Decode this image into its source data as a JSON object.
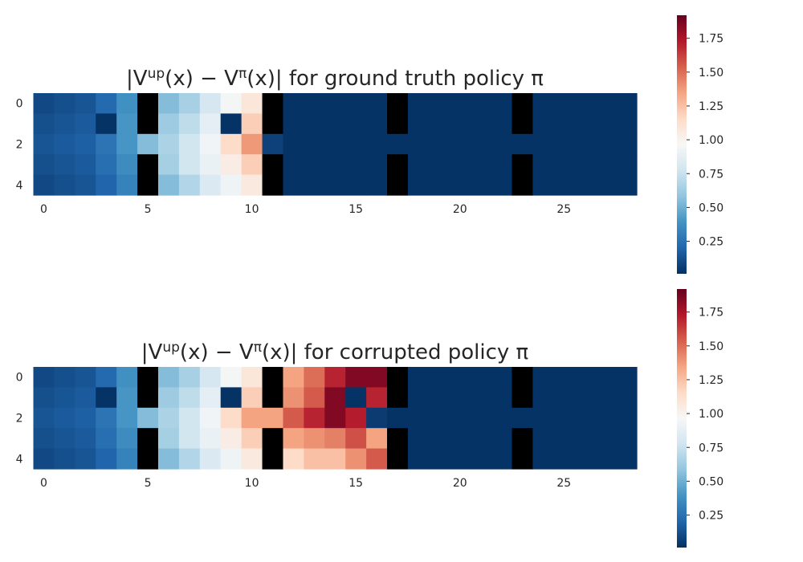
{
  "chart_data": [
    {
      "type": "heatmap",
      "title": "|V^{up}(x) − V^{π}(x)| for ground truth policy π",
      "title_parts": {
        "pre": "|V",
        "sup1": "up",
        "mid": "(x) − V",
        "sup2": "π",
        "post": "(x)| for ground truth policy π"
      },
      "xlabel": "",
      "ylabel": "",
      "xlim": [
        0,
        29
      ],
      "ylim": [
        0,
        5
      ],
      "x_ticks": [
        0,
        5,
        10,
        15,
        20,
        25
      ],
      "y_ticks": [
        0,
        2,
        4
      ],
      "colormap": "RdBu_r",
      "color_range": [
        0.01,
        1.92
      ],
      "colorbar_ticks": [
        0.25,
        0.5,
        0.75,
        1.0,
        1.25,
        1.5,
        1.75
      ],
      "wall_color": "#000000",
      "values": [
        [
          0.1,
          0.12,
          0.14,
          0.22,
          0.38,
          null,
          0.55,
          0.65,
          0.8,
          0.95,
          1.08,
          null,
          0.02,
          0.02,
          0.02,
          0.02,
          0.02,
          null,
          0.02,
          0.02,
          0.02,
          0.02,
          0.02,
          null,
          0.02,
          0.02,
          0.02,
          0.02,
          0.02
        ],
        [
          0.12,
          0.14,
          0.16,
          0.02,
          0.4,
          null,
          0.62,
          0.72,
          0.87,
          0.02,
          1.2,
          null,
          0.02,
          0.02,
          0.02,
          0.02,
          0.02,
          null,
          0.02,
          0.02,
          0.02,
          0.02,
          0.02,
          null,
          0.02,
          0.02,
          0.02,
          0.02,
          0.02
        ],
        [
          0.14,
          0.16,
          0.18,
          0.26,
          0.4,
          0.55,
          0.66,
          0.78,
          0.93,
          1.15,
          1.38,
          0.07,
          0.02,
          0.02,
          0.02,
          0.02,
          0.02,
          0.02,
          0.02,
          0.02,
          0.02,
          0.02,
          0.02,
          0.02,
          0.02,
          0.02,
          0.02,
          0.02,
          0.02
        ],
        [
          0.12,
          0.14,
          0.16,
          0.24,
          0.36,
          null,
          0.64,
          0.78,
          0.9,
          1.04,
          1.2,
          null,
          0.02,
          0.02,
          0.02,
          0.02,
          0.02,
          null,
          0.02,
          0.02,
          0.02,
          0.02,
          0.02,
          null,
          0.02,
          0.02,
          0.02,
          0.02,
          0.02
        ],
        [
          0.1,
          0.12,
          0.14,
          0.2,
          0.32,
          null,
          0.55,
          0.68,
          0.82,
          0.92,
          1.06,
          null,
          0.02,
          0.02,
          0.02,
          0.02,
          0.02,
          null,
          0.02,
          0.02,
          0.02,
          0.02,
          0.02,
          null,
          0.02,
          0.02,
          0.02,
          0.02,
          0.02
        ]
      ]
    },
    {
      "type": "heatmap",
      "title": "|V^{up}(x) − V^{π}(x)| for corrupted policy π",
      "title_parts": {
        "pre": "|V",
        "sup1": "up",
        "mid": "(x) − V",
        "sup2": "π",
        "post": "(x)| for corrupted policy π"
      },
      "xlabel": "",
      "ylabel": "",
      "xlim": [
        0,
        29
      ],
      "ylim": [
        0,
        5
      ],
      "x_ticks": [
        0,
        5,
        10,
        15,
        20,
        25
      ],
      "y_ticks": [
        0,
        2,
        4
      ],
      "colormap": "RdBu_r",
      "color_range": [
        0.01,
        1.92
      ],
      "colorbar_ticks": [
        0.25,
        0.5,
        0.75,
        1.0,
        1.25,
        1.5,
        1.75
      ],
      "wall_color": "#000000",
      "values": [
        [
          0.1,
          0.12,
          0.14,
          0.22,
          0.38,
          null,
          0.55,
          0.65,
          0.8,
          0.95,
          1.08,
          null,
          1.35,
          1.5,
          1.7,
          1.85,
          1.85,
          null,
          0.02,
          0.02,
          0.02,
          0.02,
          0.02,
          null,
          0.02,
          0.02,
          0.02,
          0.02,
          0.02
        ],
        [
          0.12,
          0.14,
          0.16,
          0.02,
          0.4,
          null,
          0.62,
          0.72,
          0.87,
          0.02,
          1.2,
          null,
          1.4,
          1.55,
          1.85,
          0.02,
          1.7,
          null,
          0.02,
          0.02,
          0.02,
          0.02,
          0.02,
          null,
          0.02,
          0.02,
          0.02,
          0.02,
          0.02
        ],
        [
          0.14,
          0.16,
          0.18,
          0.26,
          0.4,
          0.55,
          0.66,
          0.78,
          0.93,
          1.15,
          1.35,
          1.35,
          1.55,
          1.7,
          1.85,
          1.72,
          0.05,
          0.02,
          0.02,
          0.02,
          0.02,
          0.02,
          0.02,
          0.02,
          0.02,
          0.02,
          0.02,
          0.02,
          0.02
        ],
        [
          0.12,
          0.14,
          0.16,
          0.24,
          0.36,
          null,
          0.64,
          0.78,
          0.9,
          1.04,
          1.2,
          null,
          1.35,
          1.4,
          1.45,
          1.58,
          1.35,
          null,
          0.02,
          0.02,
          0.02,
          0.02,
          0.02,
          null,
          0.02,
          0.02,
          0.02,
          0.02,
          0.02
        ],
        [
          0.1,
          0.12,
          0.14,
          0.2,
          0.32,
          null,
          0.55,
          0.68,
          0.82,
          0.92,
          1.06,
          null,
          1.15,
          1.25,
          1.25,
          1.4,
          1.55,
          null,
          0.02,
          0.02,
          0.02,
          0.02,
          0.02,
          null,
          0.02,
          0.02,
          0.02,
          0.02,
          0.02
        ]
      ]
    }
  ]
}
